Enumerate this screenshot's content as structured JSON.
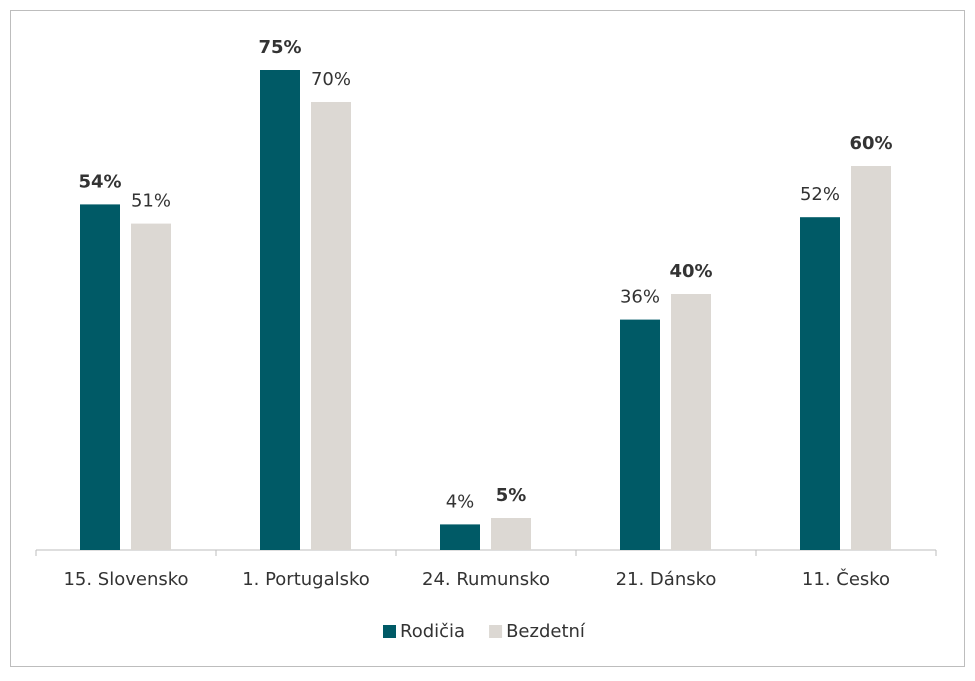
{
  "chart_data": {
    "type": "bar",
    "categories": [
      "15. Slovensko",
      "1. Portugalsko",
      "24. Rumunsko",
      "21. Dánsko",
      "11. Česko"
    ],
    "series": [
      {
        "name": "Rodičia",
        "color": "#005a66",
        "values": [
          54,
          75,
          4,
          36,
          52
        ],
        "value_labels": [
          "54%",
          "75%",
          "4%",
          "36%",
          "52%"
        ]
      },
      {
        "name": "Bezdetní",
        "color": "#dcd8d3",
        "values": [
          51,
          70,
          5,
          40,
          60
        ],
        "value_labels": [
          "51%",
          "70%",
          "5%",
          "40%",
          "60%"
        ]
      }
    ],
    "ylim": [
      0,
      80
    ],
    "legend": "bottom"
  }
}
